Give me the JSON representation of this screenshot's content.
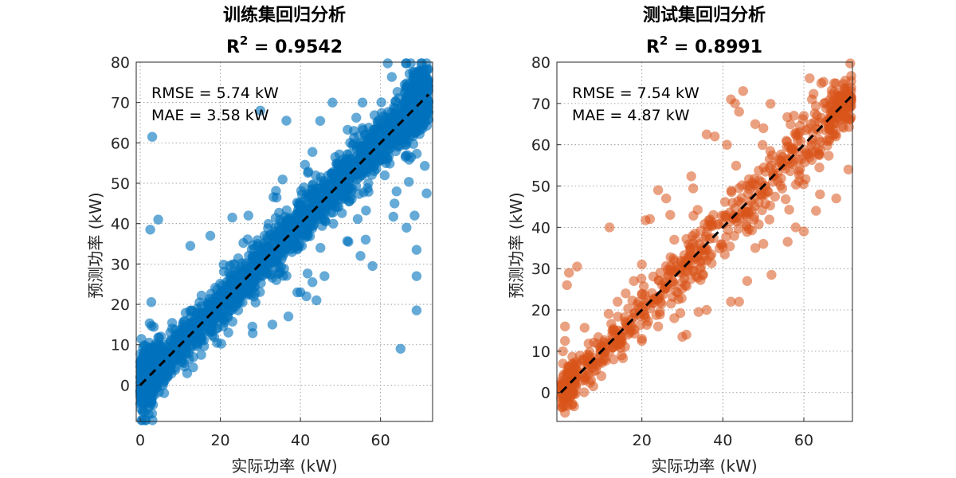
{
  "chart_data": [
    {
      "type": "scatter",
      "title": "训练集回归分析",
      "r2_prefix": "R",
      "r2_sup": "2",
      "r2_value": " = 0.9542",
      "xlabel": "实际功率 (kW)",
      "ylabel": "预测功率 (kW)",
      "xlim": [
        -1,
        73
      ],
      "ylim": [
        -9,
        80
      ],
      "xticks": [
        0,
        20,
        40,
        60
      ],
      "yticks": [
        0,
        10,
        20,
        30,
        40,
        50,
        60,
        70,
        80
      ],
      "annotations": [
        "RMSE = 5.74 kW",
        "MAE = 3.58 kW"
      ],
      "color": "#0072BD",
      "fit_line": [
        [
          0,
          0
        ],
        [
          72,
          72
        ]
      ],
      "n_points": 2400,
      "rmse": 5.74,
      "mae": 3.58,
      "outliers": [
        [
          3,
          61.5
        ],
        [
          4.5,
          41
        ],
        [
          2.5,
          38.5
        ],
        [
          12.5,
          34.5
        ],
        [
          37,
          17
        ],
        [
          40,
          23
        ],
        [
          41.5,
          22
        ],
        [
          48,
          70
        ],
        [
          55.5,
          70
        ],
        [
          36.5,
          65.5
        ],
        [
          65,
          9
        ],
        [
          69,
          18.5
        ],
        [
          69,
          27
        ],
        [
          69,
          33.5
        ],
        [
          71.5,
          47.5
        ],
        [
          64,
          48
        ],
        [
          68.5,
          42
        ],
        [
          66.5,
          39
        ],
        [
          55,
          32
        ],
        [
          58,
          29.5
        ],
        [
          63.5,
          45
        ],
        [
          52,
          35.5
        ],
        [
          45,
          34
        ],
        [
          46,
          27
        ],
        [
          43,
          25.5
        ],
        [
          44,
          21
        ],
        [
          50.5,
          47.5
        ],
        [
          30,
          68
        ],
        [
          27,
          42
        ],
        [
          23,
          41.5
        ],
        [
          35,
          28
        ],
        [
          34,
          26
        ],
        [
          28,
          14.5
        ],
        [
          33,
          15
        ],
        [
          22,
          13
        ],
        [
          17.5,
          37
        ],
        [
          7.5,
          13
        ],
        [
          8,
          14
        ],
        [
          5,
          9.5
        ],
        [
          10,
          10
        ],
        [
          15,
          12
        ]
      ]
    },
    {
      "type": "scatter",
      "title": "测试集回归分析",
      "r2_prefix": "R",
      "r2_sup": "2",
      "r2_value": " = 0.8991",
      "xlabel": "实际功率 (kW)",
      "ylabel": "预测功率 (kW)",
      "xlim": [
        -1,
        72
      ],
      "ylim": [
        -7,
        80
      ],
      "xticks": [
        20,
        40,
        60
      ],
      "yticks": [
        0,
        10,
        20,
        30,
        40,
        50,
        60,
        70,
        80
      ],
      "annotations": [
        "RMSE = 7.54 kW",
        "MAE = 4.87 kW"
      ],
      "color": "#D95319",
      "fit_line": [
        [
          0,
          0
        ],
        [
          72,
          72
        ]
      ],
      "n_points": 720,
      "rmse": 7.54,
      "mae": 4.87,
      "outliers": [
        [
          12,
          40
        ],
        [
          4,
          30.5
        ],
        [
          2,
          29
        ],
        [
          1.5,
          26
        ],
        [
          1,
          16
        ],
        [
          27,
          43
        ],
        [
          24,
          49
        ],
        [
          26,
          47
        ],
        [
          22,
          42
        ],
        [
          28,
          37
        ],
        [
          33,
          35
        ],
        [
          35,
          32
        ],
        [
          36,
          20
        ],
        [
          34,
          19.5
        ],
        [
          42,
          22
        ],
        [
          44,
          22
        ],
        [
          46,
          27
        ],
        [
          48,
          35
        ],
        [
          50,
          36
        ],
        [
          52,
          28.5
        ],
        [
          56,
          36.5
        ],
        [
          58,
          40
        ],
        [
          60,
          39
        ],
        [
          63,
          44
        ],
        [
          64,
          48
        ],
        [
          68,
          47
        ],
        [
          71,
          54
        ],
        [
          45,
          73
        ],
        [
          42,
          71
        ],
        [
          43,
          70
        ],
        [
          36,
          62.5
        ],
        [
          38,
          62
        ],
        [
          41,
          60
        ],
        [
          44,
          68
        ],
        [
          48,
          65
        ],
        [
          50,
          64
        ],
        [
          60,
          67
        ],
        [
          62,
          71
        ],
        [
          65,
          70
        ],
        [
          14,
          22
        ],
        [
          16,
          24
        ],
        [
          18,
          27
        ],
        [
          20,
          31
        ],
        [
          25,
          26
        ],
        [
          28,
          18
        ],
        [
          30,
          13.5
        ],
        [
          31,
          14
        ],
        [
          24,
          16
        ],
        [
          20,
          12.5
        ],
        [
          6,
          3
        ],
        [
          10,
          4
        ],
        [
          13,
          8
        ],
        [
          15,
          9
        ],
        [
          20,
          13
        ],
        [
          8,
          1.5
        ],
        [
          0.5,
          7
        ],
        [
          0.5,
          10
        ],
        [
          1,
          12.5
        ]
      ]
    }
  ]
}
